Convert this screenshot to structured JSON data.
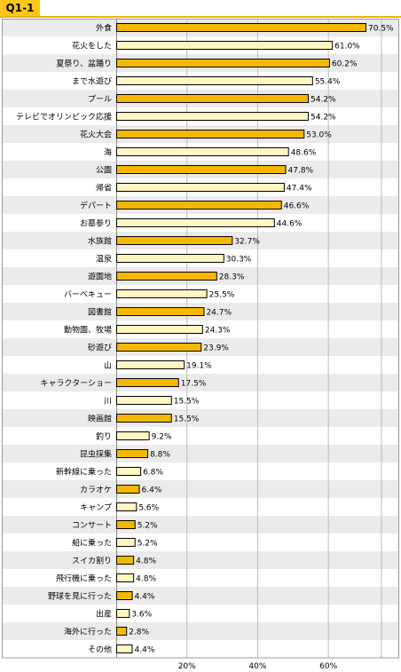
{
  "header": {
    "title": "Q1-1"
  },
  "colors": {
    "bar_a": "#f5b800",
    "bar_b": "#fff6c4",
    "bar_stroke": "#000000",
    "row_alt": "#ebebeb",
    "grid": "#bbbbbb",
    "accent": "#ffc61a"
  },
  "chart_data": {
    "type": "bar",
    "orientation": "horizontal",
    "title": "",
    "xlabel": "",
    "ylabel": "",
    "xlim": [
      0,
      75
    ],
    "grid": true,
    "xticks": [
      20,
      40,
      60
    ],
    "xtick_labels": [
      "20%",
      "40%",
      "60%"
    ],
    "categories": [
      "外食",
      "花火をした",
      "夏祭り、盆踊り",
      "まで水遊び",
      "プール",
      "テレビでオリンピック応援",
      "花火大会",
      "海",
      "公園",
      "帰省",
      "デパート",
      "お墓参り",
      "水族館",
      "温泉",
      "遊園地",
      "バーベキュー",
      "図書館",
      "動物園、牧場",
      "砂遊び",
      "山",
      "キャラクターショー",
      "川",
      "映画館",
      "釣り",
      "昆虫採集",
      "新幹線に乗った",
      "カラオケ",
      "キャンプ",
      "コンサート",
      "船に乗った",
      "スイカ割り",
      "飛行機に乗った",
      "野球を見に行った",
      "出産",
      "海外に行った",
      "その他"
    ],
    "values": [
      70.5,
      61.0,
      60.2,
      55.4,
      54.2,
      54.2,
      53.0,
      48.6,
      47.8,
      47.4,
      46.6,
      44.6,
      32.7,
      30.3,
      28.3,
      25.5,
      24.7,
      24.3,
      23.9,
      19.1,
      17.5,
      15.5,
      15.5,
      9.2,
      8.8,
      6.8,
      6.4,
      5.6,
      5.2,
      5.2,
      4.8,
      4.8,
      4.4,
      3.6,
      2.8,
      4.4
    ],
    "value_labels": [
      "70.5%",
      "61.0%",
      "60.2%",
      "55.4%",
      "54.2%",
      "54.2%",
      "53.0%",
      "48.6%",
      "47.8%",
      "47.4%",
      "46.6%",
      "44.6%",
      "32.7%",
      "30.3%",
      "28.3%",
      "25.5%",
      "24.7%",
      "24.3%",
      "23.9%",
      "19.1%",
      "17.5%",
      "15.5%",
      "15.5%",
      "9.2%",
      "8.8%",
      "6.8%",
      "6.4%",
      "5.6%",
      "5.2%",
      "5.2%",
      "4.8%",
      "4.8%",
      "4.4%",
      "3.6%",
      "2.8%",
      "4.4%"
    ]
  }
}
